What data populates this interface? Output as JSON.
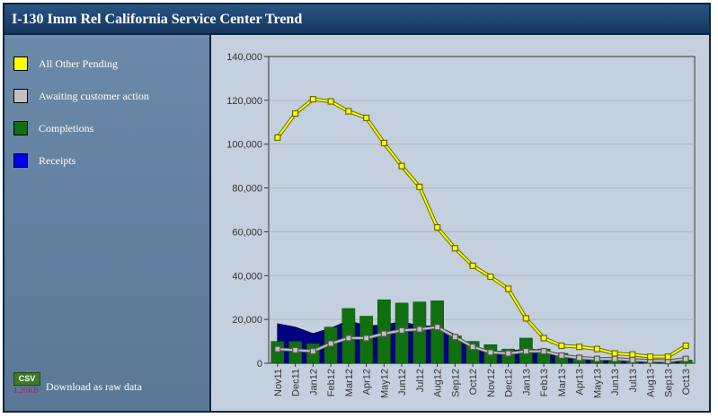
{
  "title": "I-130 Imm Rel California Service Center Trend",
  "legend": [
    {
      "label": "All Other Pending",
      "color": "#ffff00"
    },
    {
      "label": "Awaiting customer action",
      "color": "#c0c0c0"
    },
    {
      "label": "Completions",
      "color": "#107010"
    },
    {
      "label": "Receipts",
      "color": "#0000ee"
    }
  ],
  "download": {
    "badge": "CSV",
    "size": "1.20KB",
    "label": "Download as raw data"
  },
  "chart_data": {
    "type": "bar",
    "categories": [
      "Nov11",
      "Dec11",
      "Jan12",
      "Feb12",
      "Mar12",
      "Apr12",
      "May12",
      "Jun12",
      "Jul12",
      "Aug12",
      "Sep12",
      "Oct12",
      "Nov12",
      "Dec12",
      "Jan13",
      "Feb13",
      "Mar13",
      "Apr13",
      "May13",
      "Jun13",
      "Jul13",
      "Aug13",
      "Sep13",
      "Oct13"
    ],
    "ylim": [
      0,
      140000
    ],
    "yticks": [
      "0",
      "20,000",
      "40,000",
      "60,000",
      "80,000",
      "100,000",
      "120,000",
      "140,000"
    ],
    "grid": true,
    "series": [
      {
        "name": "All Other Pending",
        "type": "line",
        "color": "#ffff00",
        "values": [
          103000,
          114000,
          120500,
          119500,
          115000,
          112000,
          100500,
          90000,
          80500,
          62000,
          52500,
          44500,
          39500,
          34000,
          20500,
          11500,
          8000,
          7500,
          6500,
          4500,
          4000,
          3000,
          3000,
          8000
        ]
      },
      {
        "name": "Awaiting customer action",
        "type": "line",
        "color": "#c0c0c0",
        "values": [
          6500,
          6000,
          5500,
          9000,
          11500,
          11500,
          13500,
          15000,
          15500,
          16500,
          12000,
          7500,
          5000,
          4500,
          5500,
          5500,
          3500,
          2500,
          2000,
          2000,
          1500,
          1200,
          1000,
          2000
        ]
      },
      {
        "name": "Completions",
        "type": "bar",
        "color": "#107010",
        "values": [
          10000,
          10000,
          9000,
          16500,
          25000,
          21500,
          29000,
          27500,
          28000,
          28500,
          12500,
          10000,
          8500,
          6500,
          11500,
          6500,
          4500,
          2500,
          2000,
          2000,
          1500,
          1200,
          1000,
          1500
        ]
      },
      {
        "name": "Receipts",
        "type": "area",
        "color": "#000080",
        "values": [
          18000,
          16500,
          13500,
          16000,
          19500,
          17000,
          17500,
          19000,
          17000,
          17000,
          13000,
          7500,
          5500,
          5500,
          6500,
          6000,
          2500,
          2000,
          1500,
          1500,
          1500,
          1000,
          1000,
          1000
        ]
      }
    ]
  }
}
